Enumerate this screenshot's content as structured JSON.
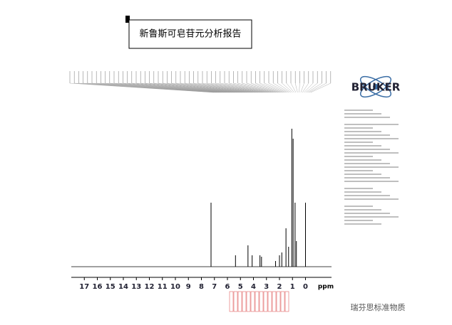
{
  "chart_data": {
    "type": "spectrum",
    "title": "新鲁斯可皂苷元分析报告",
    "x_label": "ppm",
    "x": [
      7.26,
      5.38,
      4.42,
      4.1,
      3.5,
      3.38,
      2.3,
      2.0,
      1.82,
      1.5,
      1.3,
      1.05,
      0.95,
      0.8,
      0.7,
      0.0
    ],
    "values": [
      45,
      8,
      15,
      8,
      8,
      7,
      4,
      8,
      10,
      27,
      14,
      97,
      90,
      45,
      18,
      45
    ],
    "color": "#000000",
    "xlim": [
      18,
      -2
    ],
    "ylim": [
      0,
      100
    ],
    "xticks": [
      17,
      16,
      15,
      14,
      13,
      12,
      11,
      10,
      9,
      8,
      7,
      6,
      5,
      4,
      3,
      2,
      1,
      0
    ]
  },
  "logo": "BRUKER",
  "watermark": "瑞芬思标准物质"
}
